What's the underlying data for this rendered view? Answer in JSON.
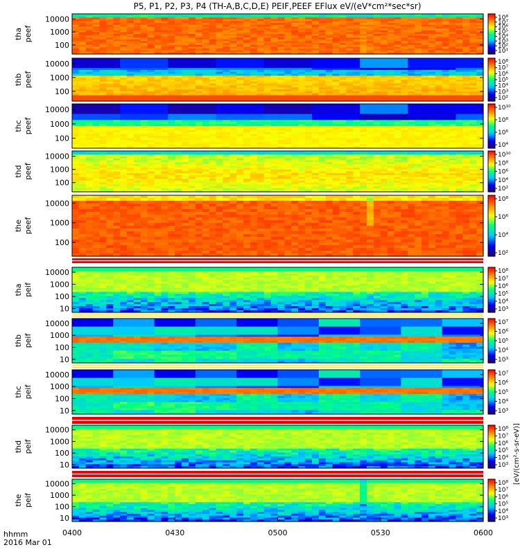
{
  "chart_data": {
    "type": "heatmap",
    "title": "P5, P1, P2, P3, P4 (TH-A,B,C,D,E) PEIF,PEEF EFlux eV/(eV*cm²*sec*sr)",
    "x_axis": {
      "label_line1": "hhmm",
      "label_line2": "2016 Mar 01",
      "tick_labels": [
        "0400",
        "0430",
        "0500",
        "0530",
        "0600"
      ],
      "range": [
        "04:00",
        "06:00"
      ]
    },
    "colorbar_label": "[eV/(cm²-s-sr-eV)]",
    "log_scale_y": true,
    "colormap": [
      "#2a0066",
      "#0000ff",
      "#00c8ff",
      "#00ff80",
      "#ffff00",
      "#ff8000",
      "#ff0000"
    ],
    "panels": [
      {
        "label": "tha peef",
        "yticks": [
          "10000",
          "1000",
          "100"
        ],
        "ylim": [
          20,
          25000
        ],
        "cb_ticks": [
          "10⁸",
          "10⁷",
          "10⁶",
          "10⁵",
          "10⁴",
          "10³",
          "10²",
          "10¹"
        ],
        "cb_range": [
          1,
          8
        ],
        "profile": "A"
      },
      {
        "label": "thb peef",
        "yticks": [
          "10000",
          "1000",
          "100"
        ],
        "ylim": [
          20,
          25000
        ],
        "cb_ticks": [
          "10⁸",
          "10⁷",
          "10⁶",
          "10⁵",
          "10⁴",
          "10³",
          "10²"
        ],
        "cb_range": [
          2,
          8
        ],
        "profile": "B"
      },
      {
        "label": "thc peef",
        "yticks": [
          "10000",
          "1000",
          "100"
        ],
        "ylim": [
          20,
          25000
        ],
        "cb_ticks": [
          "10¹⁰",
          "10⁸",
          "10⁶",
          "10⁴"
        ],
        "cb_range": [
          3,
          10
        ],
        "profile": "C"
      },
      {
        "label": "thd peef",
        "yticks": [
          "10000",
          "1000",
          "100"
        ],
        "ylim": [
          20,
          25000
        ],
        "cb_ticks": [
          "10¹⁰",
          "10⁸",
          "10⁶",
          "10⁴",
          "10²"
        ],
        "cb_range": [
          2,
          10
        ],
        "profile": "D"
      },
      {
        "label": "the peef",
        "yticks": [
          "10000",
          "1000",
          "100"
        ],
        "ylim": [
          20,
          25000
        ],
        "cb_ticks": [
          "10⁸",
          "10⁶",
          "10⁴",
          "10²"
        ],
        "cb_range": [
          1,
          8
        ],
        "profile": "E"
      },
      {
        "label": "tha peif",
        "yticks": [
          "10000",
          "1000",
          "100",
          "10"
        ],
        "ylim": [
          5,
          25000
        ],
        "cb_ticks": [
          "10⁸",
          "10⁷",
          "10⁶",
          "10⁵",
          "10⁴",
          "10³"
        ],
        "cb_range": [
          3,
          8
        ],
        "profile": "F"
      },
      {
        "label": "thb peif",
        "yticks": [
          "10000",
          "1000",
          "100",
          "10"
        ],
        "ylim": [
          5,
          25000
        ],
        "cb_ticks": [
          "10⁷",
          "10⁶",
          "10⁵",
          "10⁴",
          "10³"
        ],
        "cb_range": [
          3,
          7
        ],
        "profile": "G"
      },
      {
        "label": "thc peif",
        "yticks": [
          "10000",
          "1000",
          "100",
          "10"
        ],
        "ylim": [
          5,
          25000
        ],
        "cb_ticks": [
          "10⁷",
          "10⁶",
          "10⁵",
          "10⁴",
          "10³"
        ],
        "cb_range": [
          3,
          7
        ],
        "profile": "H"
      },
      {
        "label": "thd peif",
        "yticks": [
          "10000",
          "1000",
          "100",
          "10"
        ],
        "ylim": [
          5,
          25000
        ],
        "cb_ticks": [
          "10⁸",
          "10⁷",
          "10⁶",
          "10⁵",
          "10⁴",
          "10³"
        ],
        "cb_range": [
          3,
          8
        ],
        "profile": "I"
      },
      {
        "label": "the peif",
        "yticks": [
          "10000",
          "1000",
          "100",
          "10"
        ],
        "ylim": [
          5,
          25000
        ],
        "cb_ticks": [
          "10⁸",
          "10⁷",
          "10⁶",
          "10⁵",
          "10⁴",
          "10³"
        ],
        "cb_range": [
          3,
          8
        ],
        "profile": "J"
      }
    ]
  }
}
